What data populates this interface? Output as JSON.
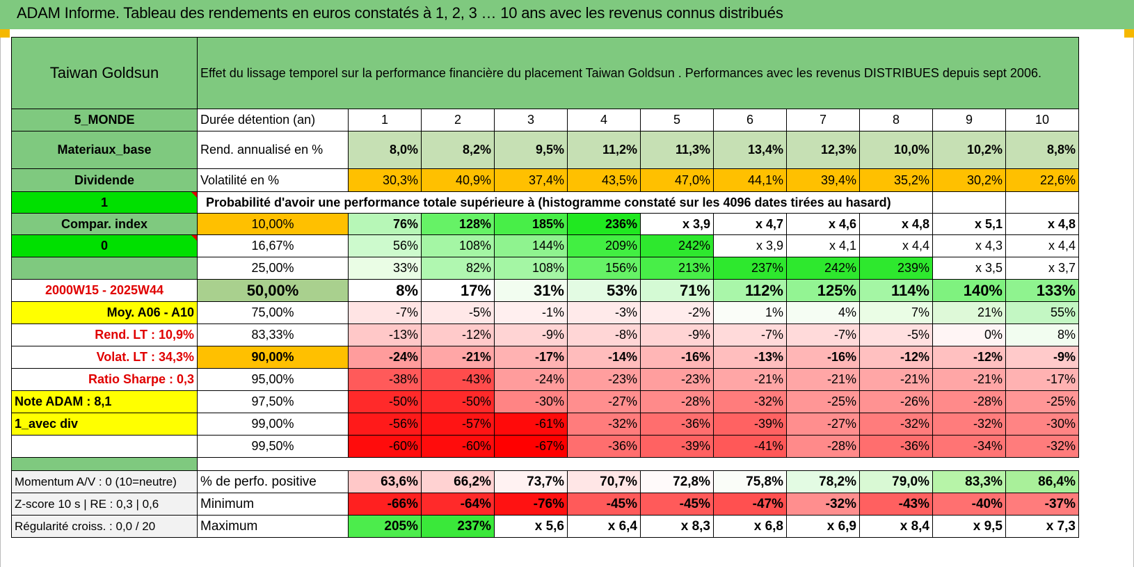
{
  "title": "ADAM Informe. Tableau des rendements en euros constatés à 1, 2, 3 … 10 ans avec les revenus connus distribués",
  "header": {
    "fund_name": "Taiwan Goldsun",
    "description": "Effet du lissage temporel sur la performance financière du placement Taiwan Goldsun . Performances avec les revenus DISTRIBUES depuis sept 2006."
  },
  "meta": {
    "zone": "5_MONDE",
    "sector": "Materiaux_base",
    "type": "Dividende",
    "flag1": "1",
    "compar": "Compar. index",
    "flag0": "0",
    "period": "2000W15 - 2025W44",
    "moy": "Moy. A06 - A10",
    "rend_lt": "Rend. LT :    10,9%",
    "volat_lt": "Volat. LT :    34,3%",
    "sharpe": "Ratio Sharpe :     0,3",
    "note": "Note ADAM : 8,1",
    "avec_div": "1_avec div"
  },
  "labels": {
    "duree": "Durée détention (an)",
    "rend": "Rend. annualisé en %",
    "volat": "Volatilité en %",
    "proba": "Probabilité d'avoir une performance totale supérieure à (histogramme constaté sur les 4096 dates tirées au hasard)",
    "positive": "% de perfo. positive",
    "minimum": "Minimum",
    "maximum": "Maximum",
    "momentum": "Momentum A/V : 0 (10=neutre)",
    "zscore": "Z-score 10 s | RE : 0,3 | 0,6",
    "regularite": "Régularité croiss. : 0,0 / 20"
  },
  "years": [
    "1",
    "2",
    "3",
    "4",
    "5",
    "6",
    "7",
    "8",
    "9",
    "10"
  ],
  "rend": [
    "8,0%",
    "8,2%",
    "9,5%",
    "11,2%",
    "11,3%",
    "13,4%",
    "12,3%",
    "10,0%",
    "10,2%",
    "8,8%"
  ],
  "volat": [
    "30,3%",
    "40,9%",
    "37,4%",
    "43,5%",
    "47,0%",
    "44,1%",
    "39,4%",
    "35,2%",
    "30,2%",
    "22,6%"
  ],
  "rows": [
    {
      "p": "10,00%",
      "v": [
        "76%",
        "128%",
        "185%",
        "236%",
        "x 3,9",
        "x 4,7",
        "x 4,6",
        "x 4,8",
        "x 5,1",
        "x 4,8"
      ]
    },
    {
      "p": "16,67%",
      "v": [
        "56%",
        "108%",
        "144%",
        "209%",
        "242%",
        "x 3,9",
        "x 4,1",
        "x 4,4",
        "x 4,3",
        "x 4,4"
      ]
    },
    {
      "p": "25,00%",
      "v": [
        "33%",
        "82%",
        "108%",
        "156%",
        "213%",
        "237%",
        "242%",
        "239%",
        "x 3,5",
        "x 3,7"
      ]
    },
    {
      "p": "50,00%",
      "v": [
        "8%",
        "17%",
        "31%",
        "53%",
        "71%",
        "112%",
        "125%",
        "114%",
        "140%",
        "133%"
      ]
    },
    {
      "p": "75,00%",
      "v": [
        "-7%",
        "-5%",
        "-1%",
        "-3%",
        "-2%",
        "1%",
        "4%",
        "7%",
        "21%",
        "55%"
      ]
    },
    {
      "p": "83,33%",
      "v": [
        "-13%",
        "-12%",
        "-9%",
        "-8%",
        "-9%",
        "-7%",
        "-7%",
        "-5%",
        "0%",
        "8%"
      ]
    },
    {
      "p": "90,00%",
      "v": [
        "-24%",
        "-21%",
        "-17%",
        "-14%",
        "-16%",
        "-13%",
        "-16%",
        "-12%",
        "-12%",
        "-9%"
      ]
    },
    {
      "p": "95,00%",
      "v": [
        "-38%",
        "-43%",
        "-24%",
        "-23%",
        "-23%",
        "-21%",
        "-21%",
        "-21%",
        "-21%",
        "-17%"
      ]
    },
    {
      "p": "97,50%",
      "v": [
        "-50%",
        "-50%",
        "-30%",
        "-27%",
        "-28%",
        "-32%",
        "-25%",
        "-26%",
        "-28%",
        "-25%"
      ]
    },
    {
      "p": "99,00%",
      "v": [
        "-56%",
        "-57%",
        "-61%",
        "-32%",
        "-36%",
        "-39%",
        "-27%",
        "-32%",
        "-32%",
        "-30%"
      ]
    },
    {
      "p": "99,50%",
      "v": [
        "-60%",
        "-60%",
        "-67%",
        "-36%",
        "-39%",
        "-41%",
        "-28%",
        "-36%",
        "-34%",
        "-32%"
      ]
    }
  ],
  "positive": [
    "63,6%",
    "66,2%",
    "73,7%",
    "70,7%",
    "72,8%",
    "75,8%",
    "78,2%",
    "79,0%",
    "83,3%",
    "86,4%"
  ],
  "minimum": [
    "-66%",
    "-64%",
    "-76%",
    "-45%",
    "-45%",
    "-47%",
    "-32%",
    "-43%",
    "-40%",
    "-37%"
  ],
  "maximum": [
    "205%",
    "237%",
    "x 5,6",
    "x 6,4",
    "x 8,3",
    "x 6,8",
    "x 6,9",
    "x 8,4",
    "x 9,5",
    "x 7,3"
  ],
  "colors": {
    "header_green": "#7fc97f",
    "bright_green": "#00e000",
    "yellow": "#ffff00",
    "orange": "#ffc000",
    "light_green": "#c6e0b4",
    "red_text": "#e00000",
    "sage": "#a9d08e",
    "cell_fills": {
      "rows": [
        [
          "#b7f7b7",
          "#66f266",
          "#48ee48",
          "#20e820",
          "#ffffff",
          "#ffffff",
          "#ffffff",
          "#ffffff",
          "#ffffff",
          "#ffffff"
        ],
        [
          "#cdfacd",
          "#a4f6a4",
          "#8ff38f",
          "#42ef42",
          "#2ee82e",
          "#ffffff",
          "#ffffff",
          "#ffffff",
          "#ffffff",
          "#ffffff"
        ],
        [
          "#eafde5",
          "#b0f7b0",
          "#a4f6a4",
          "#66f266",
          "#48ee48",
          "#2ee82e",
          "#2ee82e",
          "#2ee82e",
          "#ffffff",
          "#ffffff"
        ],
        [
          "#ffffff",
          "#ffffff",
          "#f2fdf0",
          "#e3fbe3",
          "#d4fad4",
          "#a9f6a9",
          "#93f493",
          "#a4f6a4",
          "#7ff27f",
          "#8ff38f"
        ],
        [
          "#ffe4e4",
          "#ffe8e8",
          "#ffefef",
          "#ffeaea",
          "#ffecec",
          "#fafdf8",
          "#f5fdf3",
          "#eafde5",
          "#def9d8",
          "#c3f7c3"
        ],
        [
          "#ffc8c8",
          "#ffcaca",
          "#ffd4d4",
          "#ffd6d6",
          "#ffd4d4",
          "#ffdada",
          "#ffdada",
          "#ffe0e0",
          "#fff5f5",
          "#f2fdf0"
        ],
        [
          "#ff9c9c",
          "#ffa6a6",
          "#ffb2b2",
          "#ffbcbc",
          "#ffb6b6",
          "#ffbebe",
          "#ffb6b6",
          "#ffc0c0",
          "#ffc0c0",
          "#ffcaca"
        ],
        [
          "#ff5a5a",
          "#ff4c4c",
          "#ff9c9c",
          "#ff9e9e",
          "#ff9e9e",
          "#ffa6a6",
          "#ffa6a6",
          "#ffa6a6",
          "#ffa6a6",
          "#ffb2b2"
        ],
        [
          "#ff2a2a",
          "#ff2a2a",
          "#ff8484",
          "#ff8e8e",
          "#ff8a8a",
          "#ff7c7c",
          "#ff9696",
          "#ff9292",
          "#ff8a8a",
          "#ff9696"
        ],
        [
          "#ff1a1a",
          "#ff1414",
          "#ff0a0a",
          "#ff7c7c",
          "#ff6e6e",
          "#ff6262",
          "#ff8e8e",
          "#ff7c7c",
          "#ff7c7c",
          "#ff8484"
        ],
        [
          "#ff0c0c",
          "#ff0c0c",
          "#ff0000",
          "#ff6e6e",
          "#ff6262",
          "#ff5858",
          "#ff8a8a",
          "#ff6e6e",
          "#ff7474",
          "#ff7c7c"
        ]
      ],
      "positive": [
        "#ffc8c8",
        "#ffd2d2",
        "#fff2f2",
        "#ffe6e6",
        "#fffafa",
        "#fafdf8",
        "#e3fbe3",
        "#d9f9d4",
        "#b7f4a8",
        "#a9f09a"
      ],
      "minimum": [
        "#ff2020",
        "#ff2a2a",
        "#ff1212",
        "#ff5a5a",
        "#ff5a5a",
        "#ff5050",
        "#ff8e8e",
        "#ff6060",
        "#ff7070",
        "#ff7c7c"
      ],
      "maximum": [
        "#4cec4c",
        "#3ae83a",
        "#ffffff",
        "#ffffff",
        "#ffffff",
        "#ffffff",
        "#ffffff",
        "#ffffff",
        "#ffffff",
        "#ffffff"
      ]
    }
  }
}
